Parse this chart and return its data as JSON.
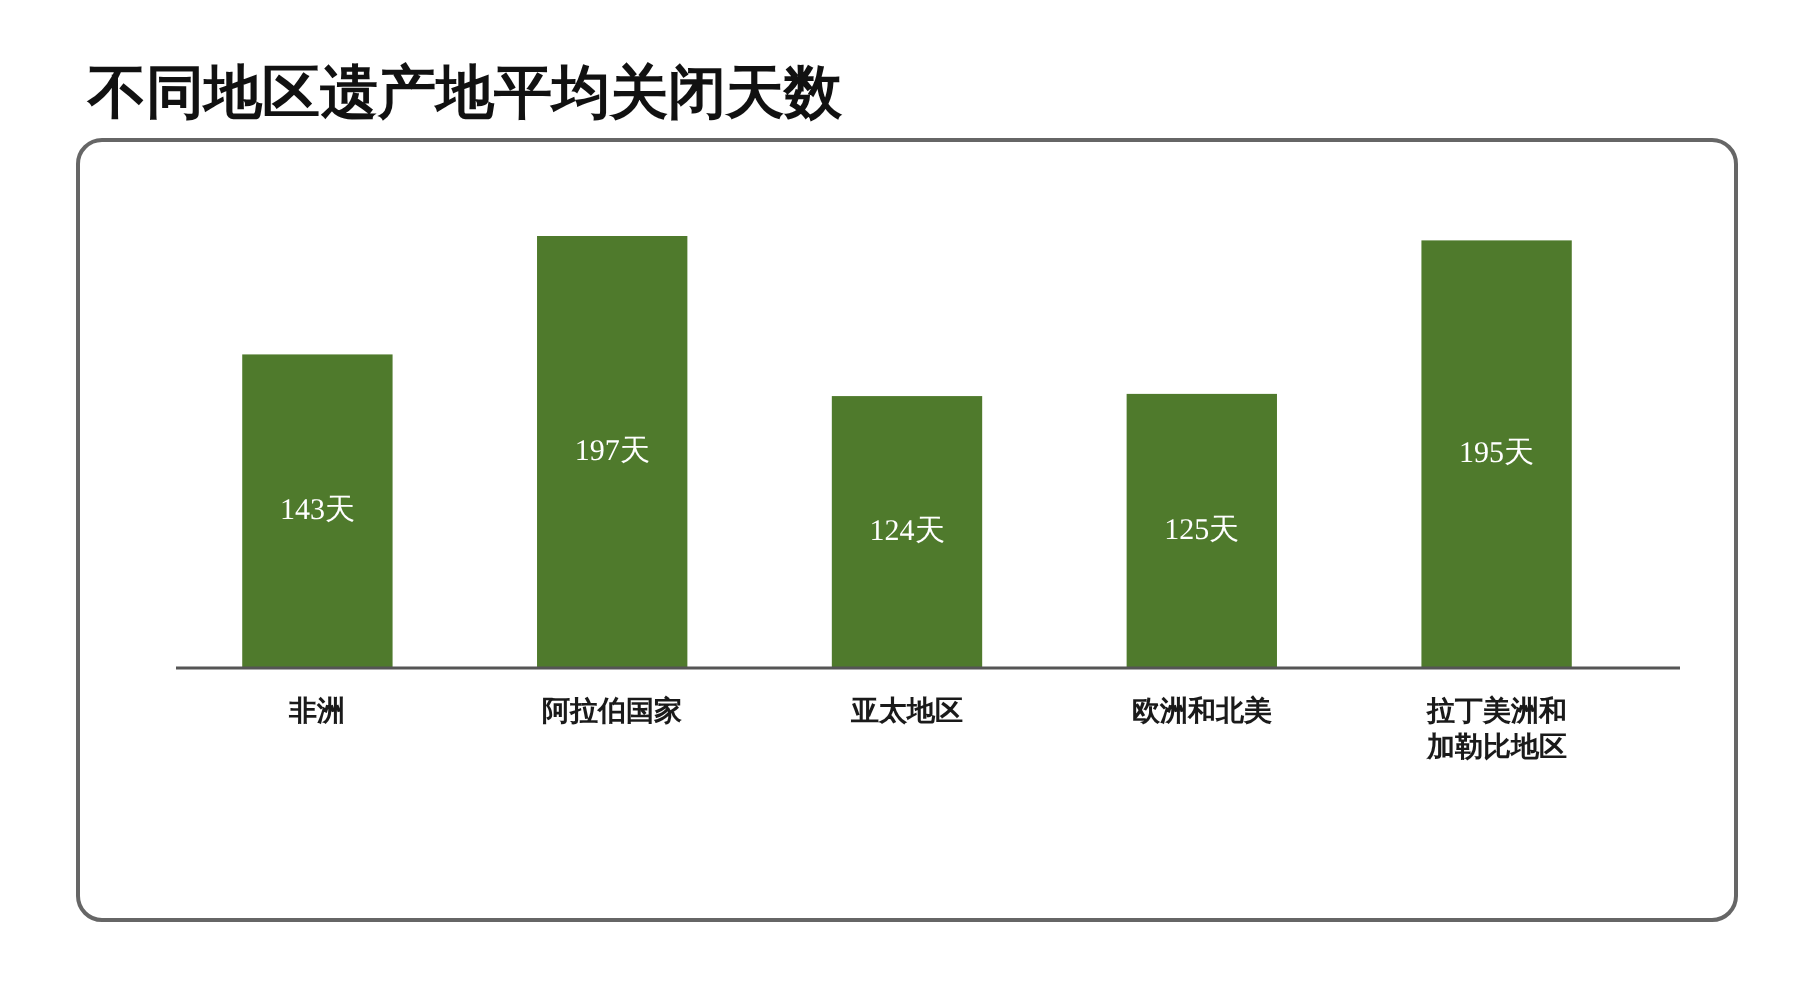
{
  "chart_data": {
    "type": "bar",
    "title": "不同地区遗产地平均关闭天数",
    "categories": [
      "非洲",
      "阿拉伯国家",
      "亚太地区",
      "欧洲和北美",
      "拉丁美洲和加勒比地区"
    ],
    "values": [
      143,
      197,
      124,
      125,
      195
    ],
    "value_labels": [
      "143天",
      "197天",
      "124天",
      "125天",
      "195天"
    ],
    "color": "#4f7a2c"
  }
}
